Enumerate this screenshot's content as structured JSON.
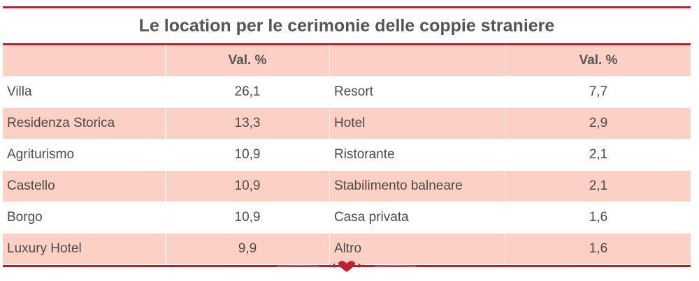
{
  "title": "Le location per le cerimonie delle coppie straniere",
  "header": {
    "col1": "",
    "col2": "Val. %",
    "col3": "",
    "col4": "Val. %"
  },
  "rows": [
    {
      "left_name": "Villa",
      "left_val": "26,1",
      "right_name": "Resort",
      "right_val": "7,7"
    },
    {
      "left_name": "Residenza Storica",
      "left_val": "13,3",
      "right_name": "Hotel",
      "right_val": "2,9"
    },
    {
      "left_name": "Agriturismo",
      "left_val": "10,9",
      "right_name": "Ristorante",
      "right_val": "2,1"
    },
    {
      "left_name": "Castello",
      "left_val": "10,9",
      "right_name": "Stabilimento balneare",
      "right_val": "2,1"
    },
    {
      "left_name": "Borgo",
      "left_val": "10,9",
      "right_name": "Casa privata",
      "right_val": "1,6"
    },
    {
      "left_name": "Luxury Hotel",
      "left_val": "9,9",
      "right_name": "Altro",
      "right_val": "1,6"
    }
  ],
  "colors": {
    "rule": "#b0242f",
    "shade": "#fcd0c4",
    "text": "#4a4a4a"
  },
  "ornament_icon": "heart-ornament-icon"
}
